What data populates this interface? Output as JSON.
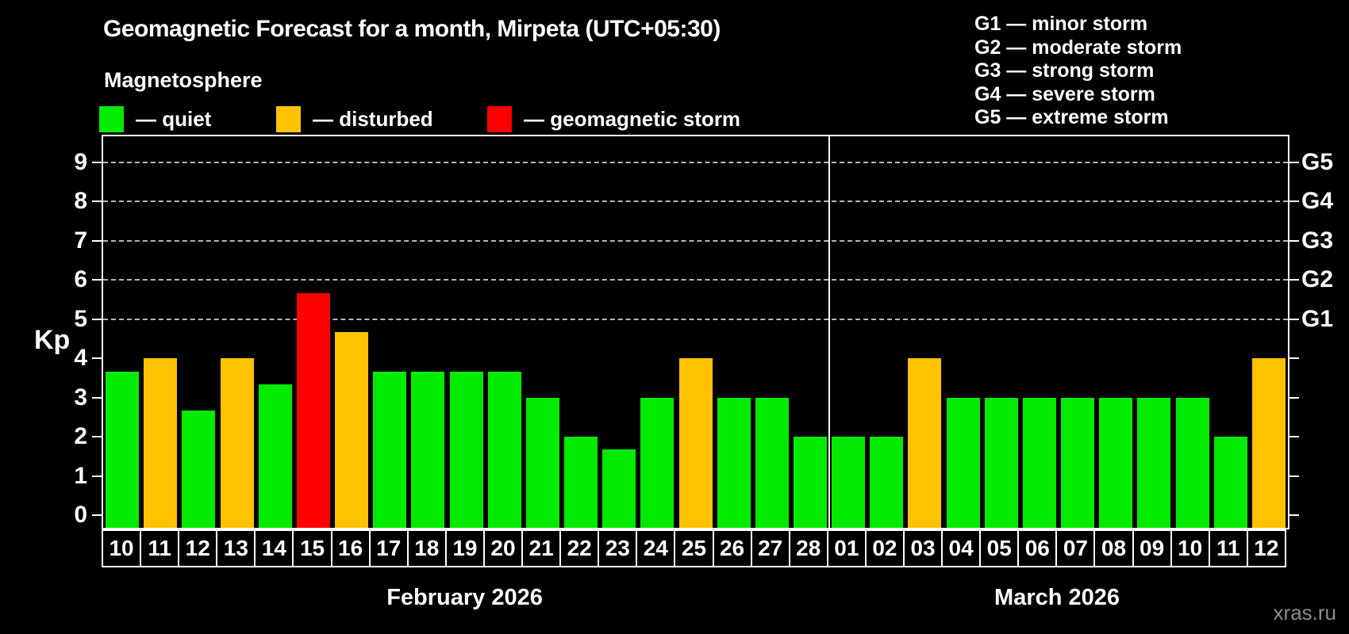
{
  "header": {
    "title": "Geomagnetic Forecast for a month, Mirpeta (UTC+05:30)",
    "subtitle": "Magnetosphere"
  },
  "legend": {
    "items": [
      {
        "name": "quiet",
        "label": "— quiet",
        "color": "#00eb00",
        "x": 125
      },
      {
        "name": "disturbed",
        "label": "— disturbed",
        "color": "#ffc200",
        "x": 348
      },
      {
        "name": "storm",
        "label": "— geomagnetic storm",
        "color": "#ff0000",
        "x": 614
      }
    ]
  },
  "g_legend": {
    "items": [
      "G1 — minor storm",
      "G2 — moderate storm",
      "G3 — strong storm",
      "G4 — severe storm",
      "G5 — extreme storm"
    ]
  },
  "axis": {
    "ylabel": "Kp",
    "yticks": [
      0,
      1,
      2,
      3,
      4,
      5,
      6,
      7,
      8,
      9
    ],
    "right_ticks": [
      {
        "kp": 5,
        "label": "G1"
      },
      {
        "kp": 6,
        "label": "G2"
      },
      {
        "kp": 7,
        "label": "G3"
      },
      {
        "kp": 8,
        "label": "G4"
      },
      {
        "kp": 9,
        "label": "G5"
      }
    ]
  },
  "chart_data": {
    "type": "bar",
    "title": "Geomagnetic Forecast for a month, Mirpeta (UTC+05:30)",
    "xlabel": "",
    "ylabel": "Kp",
    "ylim": [
      0,
      9.7
    ],
    "grid": "dashed horizontal lines at Kp 5,6,7,8,9 (G1–G5 levels)",
    "legend_position": "top",
    "categories": [
      "10",
      "11",
      "12",
      "13",
      "14",
      "15",
      "16",
      "17",
      "18",
      "19",
      "20",
      "21",
      "22",
      "23",
      "24",
      "25",
      "26",
      "27",
      "28",
      "01",
      "02",
      "03",
      "04",
      "05",
      "06",
      "07",
      "08",
      "09",
      "10",
      "11",
      "12"
    ],
    "values": [
      3.67,
      4,
      2.67,
      4,
      3.33,
      5.67,
      4.67,
      3.67,
      3.67,
      3.67,
      3.67,
      3,
      2,
      1.67,
      3,
      4,
      3,
      3,
      2,
      2,
      2,
      4,
      3,
      3,
      3,
      3,
      3,
      3,
      3,
      2,
      4
    ],
    "statuses": [
      "quiet",
      "disturbed",
      "quiet",
      "disturbed",
      "quiet",
      "storm",
      "disturbed",
      "quiet",
      "quiet",
      "quiet",
      "quiet",
      "quiet",
      "quiet",
      "quiet",
      "quiet",
      "disturbed",
      "quiet",
      "quiet",
      "quiet",
      "quiet",
      "quiet",
      "disturbed",
      "quiet",
      "quiet",
      "quiet",
      "quiet",
      "quiet",
      "quiet",
      "quiet",
      "quiet",
      "disturbed"
    ],
    "status_colors": {
      "quiet": "#00eb00",
      "disturbed": "#ffc200",
      "storm": "#ff0000"
    },
    "months": [
      {
        "label": "February 2026",
        "days": 19
      },
      {
        "label": "March 2026",
        "days": 12
      }
    ]
  },
  "watermark": "xras.ru"
}
